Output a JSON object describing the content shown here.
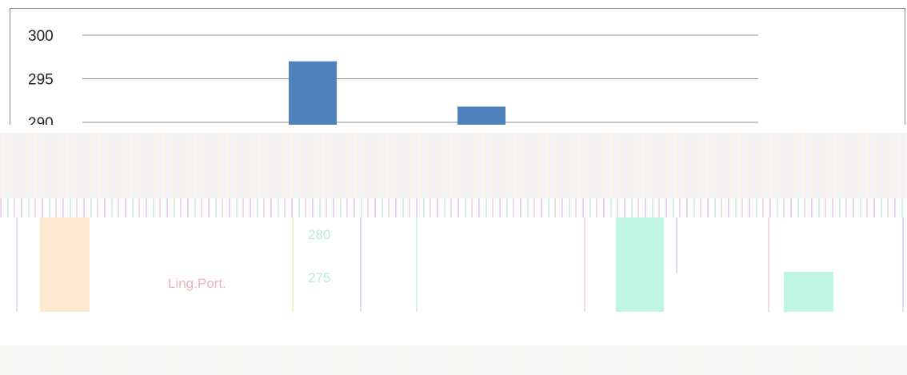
{
  "chart_data": [
    {
      "type": "bar",
      "ylim": [
        290,
        300
      ],
      "yticks": [
        "300",
        "295",
        "290"
      ],
      "values": [
        297,
        291.8
      ],
      "colors": {
        "bar": "#4f81bd",
        "grid": "#8c8c8c",
        "text": "#222222"
      }
    },
    {
      "type": "bar",
      "yticks": [
        "280",
        "275"
      ],
      "legend_label": "Ling.Port.",
      "values": [
        280,
        276
      ],
      "colors": {
        "bar_a": "#fde9cf",
        "bar_b": "#c0f5e3",
        "tick": "#9fe8c9",
        "label": "#e89aa8"
      }
    }
  ]
}
